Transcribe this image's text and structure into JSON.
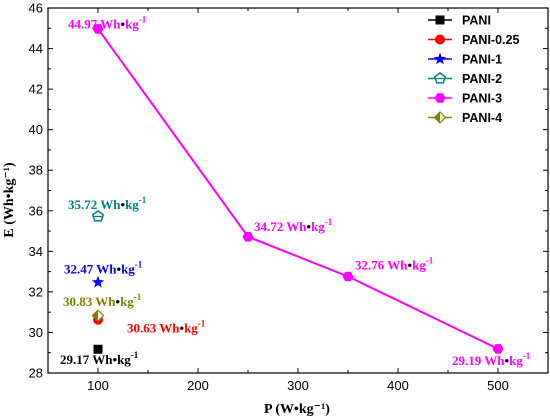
{
  "chart_data": {
    "type": "scatter",
    "xlabel": "P (W•kg⁻¹)",
    "ylabel": "E (Wh•kg⁻¹)",
    "xlim": [
      50,
      550
    ],
    "ylim": [
      28,
      46
    ],
    "xticks": [
      100,
      200,
      300,
      400,
      500
    ],
    "yticks": [
      28,
      30,
      32,
      34,
      36,
      38,
      40,
      42,
      44,
      46
    ],
    "grid": false,
    "legend_position": "top-right",
    "series": [
      {
        "name": "PANI",
        "color": "#000000",
        "marker": "square",
        "line": false,
        "points": [
          {
            "x": 100,
            "y": 29.17
          }
        ]
      },
      {
        "name": "PANI-0.25",
        "color": "#ff0000",
        "marker": "circle",
        "line": false,
        "points": [
          {
            "x": 100,
            "y": 30.63
          }
        ]
      },
      {
        "name": "PANI-1",
        "color": "#0000ff",
        "marker": "star",
        "line": false,
        "points": [
          {
            "x": 100,
            "y": 32.47
          }
        ]
      },
      {
        "name": "PANI-2",
        "color": "#008080",
        "marker": "pentagon-open",
        "line": false,
        "points": [
          {
            "x": 100,
            "y": 35.72
          }
        ]
      },
      {
        "name": "PANI-3",
        "color": "#ff00ff",
        "marker": "hexagon",
        "line": true,
        "points": [
          {
            "x": 100,
            "y": 44.97
          },
          {
            "x": 250,
            "y": 34.72
          },
          {
            "x": 350,
            "y": 32.76
          },
          {
            "x": 500,
            "y": 29.19
          }
        ]
      },
      {
        "name": "PANI-4",
        "color": "#808000",
        "marker": "diamond-half",
        "line": false,
        "points": [
          {
            "x": 100,
            "y": 30.83
          }
        ]
      }
    ],
    "annotations": [
      {
        "value": "44.97",
        "unit": "Wh",
        "dot": "•",
        "unit2": "kg",
        "sup": "-1",
        "color": "#ff00ff",
        "ax": 68,
        "ay": 45.0
      },
      {
        "value": "35.72",
        "unit": "Wh",
        "dot": "•",
        "unit2": "kg",
        "sup": "-1",
        "color": "#008080",
        "ax": 68,
        "ay": 36.1
      },
      {
        "value": "34.72",
        "unit": "Wh",
        "dot": "•",
        "unit2": "kg",
        "sup": "-1",
        "color": "#ff00ff",
        "ax": 254,
        "ay": 35.0
      },
      {
        "value": "32.47",
        "unit": "Wh",
        "dot": "•",
        "unit2": "kg",
        "sup": "-1",
        "color": "#0000ff",
        "ax": 64,
        "ay": 32.9
      },
      {
        "value": "32.76",
        "unit": "Wh",
        "dot": "•",
        "unit2": "kg",
        "sup": "-1",
        "color": "#ff00ff",
        "ax": 355,
        "ay": 33.1
      },
      {
        "value": "30.83",
        "unit": "Wh",
        "dot": "•",
        "unit2": "kg",
        "sup": "-1",
        "color": "#808000",
        "ax": 63,
        "ay": 31.3
      },
      {
        "value": "30.63",
        "unit": "Wh",
        "dot": "•",
        "unit2": "kg",
        "sup": "-1",
        "color": "#ff0000",
        "ax": 127,
        "ay": 30.0
      },
      {
        "value": "29.17",
        "unit": "Wh",
        "dot": "•",
        "unit2": "kg",
        "sup": "-1",
        "color": "#000000",
        "ax": 60,
        "ay": 28.45
      },
      {
        "value": "29.19",
        "unit": "Wh",
        "dot": "•",
        "unit2": "kg",
        "sup": "-1",
        "color": "#ff00ff",
        "ax": 452,
        "ay": 28.4
      }
    ]
  }
}
